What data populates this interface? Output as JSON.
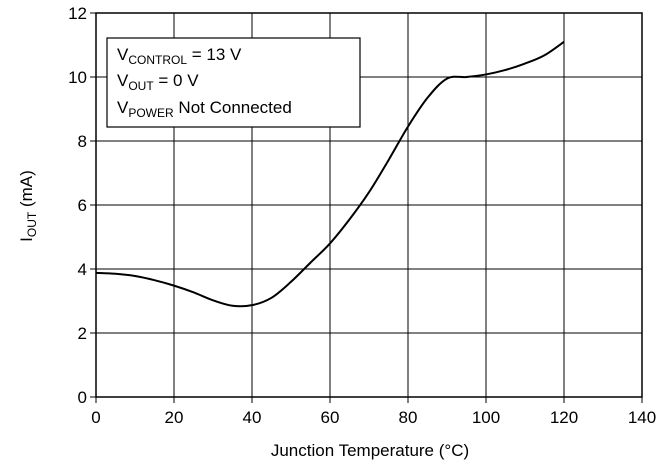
{
  "chart_data": {
    "type": "line",
    "title": "",
    "xlabel": "Junction Temperature (°C)",
    "ylabel": {
      "main": "I",
      "sub": "OUT",
      "rest": " (mA)"
    },
    "xlim": [
      0,
      140
    ],
    "ylim": [
      0,
      12
    ],
    "xticks": [
      "0",
      "20",
      "40",
      "60",
      "80",
      "100",
      "120",
      "140"
    ],
    "yticks": [
      "0",
      "2",
      "4",
      "6",
      "8",
      "10",
      "12"
    ],
    "grid": true,
    "series": [
      {
        "name": "",
        "x": [
          0,
          5,
          10,
          15,
          20,
          25,
          30,
          35,
          40,
          45,
          50,
          55,
          60,
          65,
          70,
          75,
          80,
          85,
          90,
          95,
          100,
          105,
          110,
          115,
          120
        ],
        "y": [
          3.88,
          3.85,
          3.78,
          3.65,
          3.48,
          3.27,
          3.02,
          2.85,
          2.87,
          3.1,
          3.6,
          4.2,
          4.8,
          5.55,
          6.4,
          7.4,
          8.45,
          9.35,
          9.95,
          10.0,
          10.08,
          10.22,
          10.42,
          10.68,
          11.1
        ]
      }
    ],
    "annotation": [
      {
        "main": "V",
        "sub": "CONTROL",
        "rest": " = 13 V"
      },
      {
        "main": "V",
        "sub": "OUT",
        "rest": " = 0 V"
      },
      {
        "main": "V",
        "sub": "POWER",
        "rest": " Not Connected"
      }
    ],
    "colors": {
      "line": "#000000",
      "grid": "#000000",
      "background": "#ffffff"
    }
  }
}
